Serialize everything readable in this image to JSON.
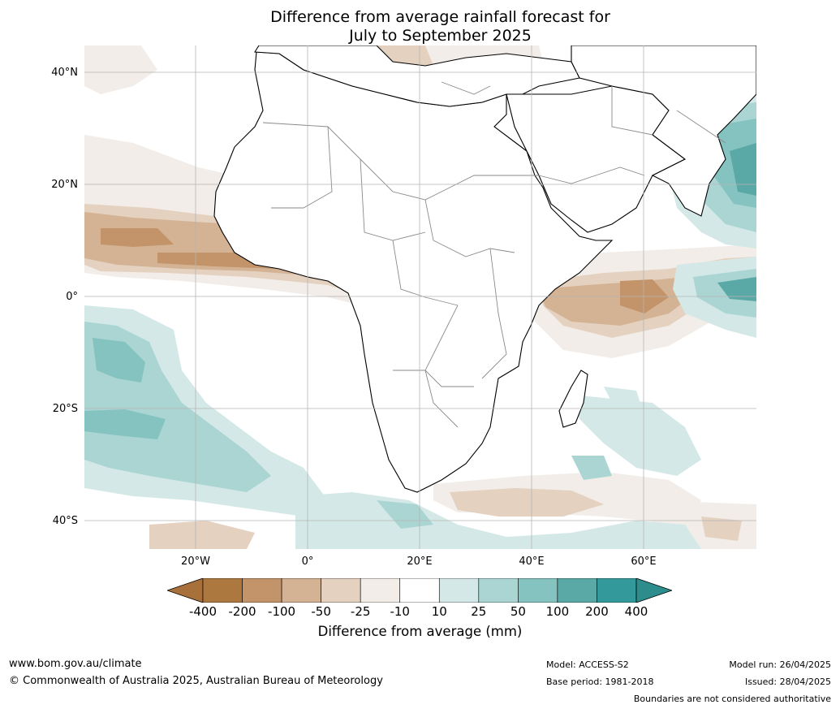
{
  "title_line1": "Difference from average rainfall forecast for",
  "title_line2": "July to September 2025",
  "map": {
    "lat_labels": [
      "40°N",
      "20°N",
      "0°",
      "20°S",
      "40°S"
    ],
    "lon_labels": [
      "20°W",
      "0°",
      "20°E",
      "40°E",
      "60°E"
    ],
    "land_fill": "#ffffff",
    "ocean_fill": "#ffffff"
  },
  "colorbar": {
    "title": "Difference from average (mm)",
    "ticks": [
      "-400",
      "-200",
      "-100",
      "-50",
      "-25",
      "-10",
      "10",
      "25",
      "50",
      "100",
      "200",
      "400"
    ],
    "colors": [
      "#a8703b",
      "#ad7740",
      "#c39469",
      "#d4b294",
      "#e4d1c0",
      "#f2ede8",
      "#ffffff",
      "#d4e9e7",
      "#aad5d3",
      "#84c3c0",
      "#5ba9a6",
      "#33999a",
      "#2d8d8d"
    ]
  },
  "footer": {
    "website": "www.bom.gov.au/climate",
    "copyright": "© Commonwealth of Australia 2025, Australian Bureau of Meteorology",
    "model": "Model: ACCESS-S2",
    "base_period": "Base period: 1981-2018",
    "model_run": "Model run: 26/04/2025",
    "issued": "Issued: 28/04/2025",
    "boundaries": "Boundaries are not considered authoritative"
  }
}
